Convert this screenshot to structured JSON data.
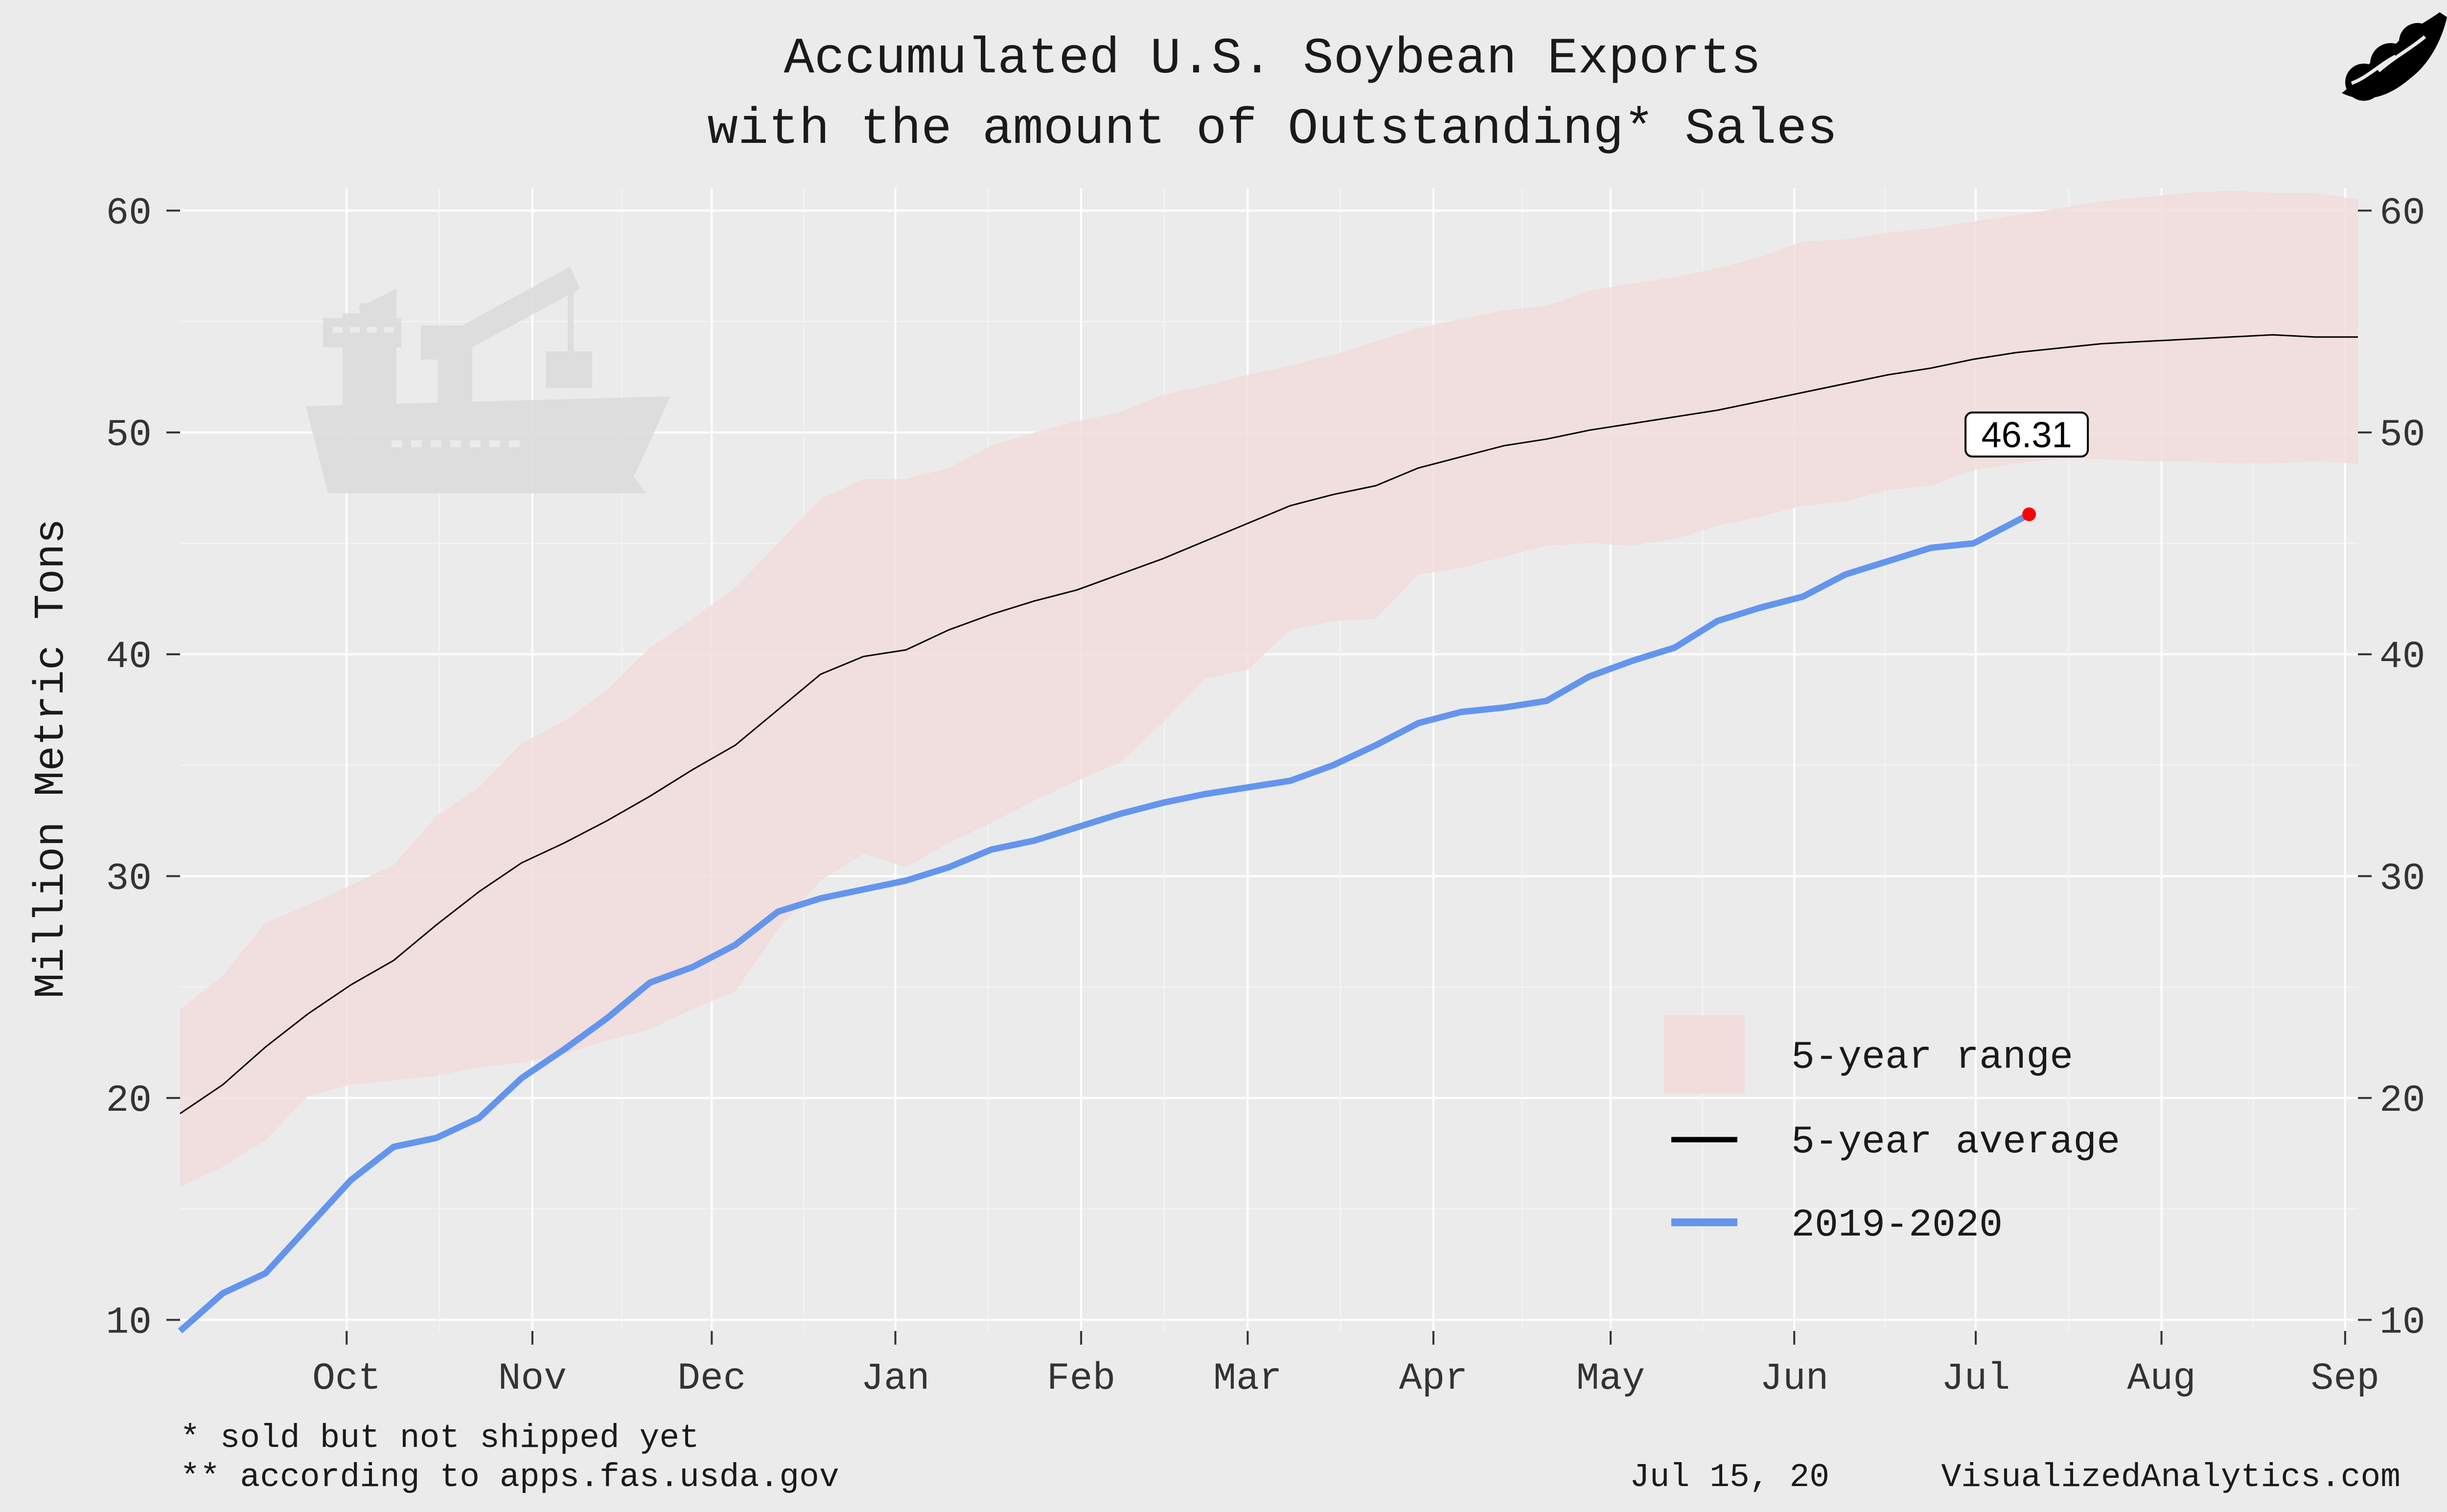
{
  "chart_data": {
    "type": "line",
    "title": [
      "Accumulated U.S. Soybean Exports",
      "with the amount of Outstanding* Sales"
    ],
    "ylabel": "Million Metric Tons",
    "xlabel": "",
    "ylim": [
      9.5,
      61
    ],
    "yticks": [
      10,
      20,
      30,
      40,
      50,
      60
    ],
    "xlim": [
      0,
      51
    ],
    "xticks": [
      {
        "label": "Oct",
        "week": 3.9
      },
      {
        "label": "Nov",
        "week": 8.25
      },
      {
        "label": "Dec",
        "week": 12.45
      },
      {
        "label": "Jan",
        "week": 16.75
      },
      {
        "label": "Feb",
        "week": 21.1
      },
      {
        "label": "Mar",
        "week": 25.0
      },
      {
        "label": "Apr",
        "week": 29.35
      },
      {
        "label": "May",
        "week": 33.5
      },
      {
        "label": "Jun",
        "week": 37.8
      },
      {
        "label": "Jul",
        "week": 42.05
      },
      {
        "label": "Aug",
        "week": 46.4
      },
      {
        "label": "Sep",
        "week": 50.7
      }
    ],
    "series": [
      {
        "name": "5-year range",
        "kind": "band",
        "color": "#f2dcdc",
        "x": [
          0,
          1,
          2,
          3,
          4,
          5,
          6,
          7,
          8,
          9,
          10,
          11,
          12,
          13,
          14,
          15,
          16,
          17,
          18,
          19,
          20,
          21,
          22,
          23,
          24,
          25,
          26,
          27,
          28,
          29,
          30,
          31,
          32,
          33,
          34,
          35,
          36,
          37,
          38,
          39,
          40,
          41,
          42,
          43,
          44,
          45,
          46,
          47,
          48,
          49,
          50,
          51
        ],
        "lower": [
          16.0,
          16.9,
          18.1,
          20.1,
          20.6,
          20.8,
          21.0,
          21.4,
          21.6,
          22.0,
          22.6,
          23.1,
          24.0,
          24.8,
          27.6,
          29.8,
          31.0,
          30.4,
          31.5,
          32.4,
          33.4,
          34.3,
          35.1,
          36.9,
          38.9,
          39.3,
          41.1,
          41.5,
          41.6,
          43.6,
          43.9,
          44.4,
          44.9,
          45.0,
          44.9,
          45.2,
          45.8,
          46.2,
          46.7,
          46.9,
          47.4,
          47.6,
          48.3,
          48.6,
          48.8,
          48.8,
          48.7,
          48.7,
          48.6,
          48.6,
          48.7,
          48.6
        ],
        "upper": [
          24.0,
          25.5,
          27.9,
          28.7,
          29.6,
          30.5,
          32.7,
          34.0,
          36.0,
          37.0,
          38.4,
          40.3,
          41.6,
          43.0,
          45.0,
          47.0,
          47.9,
          47.9,
          48.4,
          49.4,
          50.0,
          50.5,
          50.9,
          51.7,
          52.1,
          52.6,
          53.0,
          53.5,
          54.1,
          54.7,
          55.1,
          55.5,
          55.7,
          56.4,
          56.7,
          57.0,
          57.4,
          57.9,
          58.6,
          58.7,
          59.0,
          59.2,
          59.5,
          59.8,
          60.1,
          60.4,
          60.6,
          60.8,
          60.9,
          60.8,
          60.8,
          60.5
        ]
      },
      {
        "name": "5-year average",
        "kind": "line",
        "color": "#000000",
        "x": [
          0,
          1,
          2,
          3,
          4,
          5,
          6,
          7,
          8,
          9,
          10,
          11,
          12,
          13,
          14,
          15,
          16,
          17,
          18,
          19,
          20,
          21,
          22,
          23,
          24,
          25,
          26,
          27,
          28,
          29,
          30,
          31,
          32,
          33,
          34,
          35,
          36,
          37,
          38,
          39,
          40,
          41,
          42,
          43,
          44,
          45,
          46,
          47,
          48,
          49,
          50,
          51
        ],
        "values": [
          19.3,
          20.6,
          22.3,
          23.8,
          25.1,
          26.2,
          27.8,
          29.3,
          30.6,
          31.5,
          32.5,
          33.6,
          34.8,
          35.9,
          37.5,
          39.1,
          39.9,
          40.2,
          41.1,
          41.8,
          42.4,
          42.9,
          43.6,
          44.3,
          45.1,
          45.9,
          46.7,
          47.2,
          47.6,
          48.4,
          48.9,
          49.4,
          49.7,
          50.1,
          50.4,
          50.7,
          51.0,
          51.4,
          51.8,
          52.2,
          52.6,
          52.9,
          53.3,
          53.6,
          53.8,
          54.0,
          54.1,
          54.2,
          54.3,
          54.4,
          54.3,
          54.3
        ]
      },
      {
        "name": "2019-2020",
        "kind": "line",
        "color": "#6495ed",
        "x": [
          0,
          1,
          2,
          3,
          4,
          5,
          6,
          7,
          8,
          9,
          10,
          11,
          12,
          13,
          14,
          15,
          16,
          17,
          18,
          19,
          20,
          21,
          22,
          23,
          24,
          25,
          26,
          27,
          28,
          29,
          30,
          31,
          32,
          33,
          34,
          35,
          36,
          37,
          38,
          39,
          40,
          41,
          42,
          43
        ],
        "values": [
          9.5,
          11.2,
          12.1,
          14.2,
          16.3,
          17.8,
          18.2,
          19.1,
          20.9,
          22.2,
          23.6,
          25.2,
          25.9,
          26.9,
          28.4,
          29.0,
          29.4,
          29.8,
          30.4,
          31.2,
          31.6,
          32.2,
          32.8,
          33.3,
          33.7,
          34.0,
          34.3,
          35.0,
          35.9,
          36.9,
          37.4,
          37.6,
          37.9,
          39.0,
          39.7,
          40.3,
          41.5,
          42.1,
          42.6,
          43.6,
          44.2,
          44.8,
          45.0,
          46.0
        ]
      }
    ],
    "annotation": {
      "text": "46.31",
      "x": 43.3,
      "y": 46.31,
      "marker_color": "#ff0000"
    },
    "legend": {
      "position": "bottom-right",
      "items": [
        {
          "label": "5-year range",
          "kind": "band",
          "color": "#f2dcdc"
        },
        {
          "label": "5-year average",
          "kind": "line",
          "color": "#000000"
        },
        {
          "label": "2019-2020",
          "kind": "line",
          "color": "#6495ed"
        }
      ]
    },
    "grid": true,
    "footnotes": [
      "* sold but not shipped yet",
      "** according to apps.fas.usda.gov"
    ],
    "date": "Jul 15, 20",
    "source": "VisualizedAnalytics.com",
    "icons": [
      "ship-crane-icon",
      "soybean-pod-icon"
    ]
  }
}
